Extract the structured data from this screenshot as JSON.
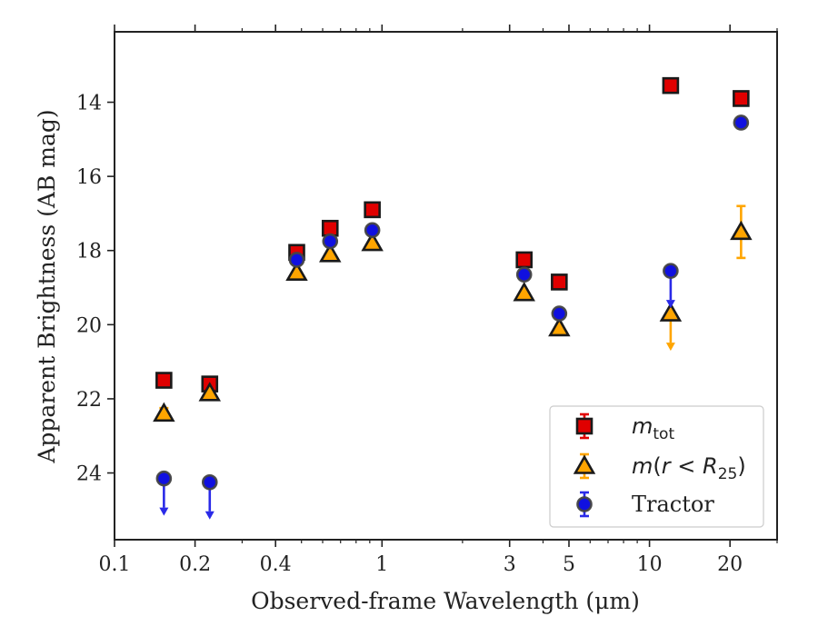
{
  "chart_data": {
    "type": "scatter",
    "xlabel": "Observed-frame Wavelength (μm)",
    "ylabel": "Apparent Brightness (AB mag)",
    "xscale": "log",
    "xlim": [
      0.1,
      30
    ],
    "ylim": [
      25.8,
      12.1
    ],
    "y_inverted": true,
    "x_ticks": [
      0.1,
      0.2,
      0.4,
      1,
      3,
      5,
      10,
      20
    ],
    "x_tick_labels": [
      "0.1",
      "0.2",
      "0.4",
      "1",
      "3",
      "5",
      "10",
      "20"
    ],
    "y_ticks": [
      14,
      16,
      18,
      20,
      22,
      24
    ],
    "y_tick_labels": [
      "14",
      "16",
      "18",
      "20",
      "22",
      "24"
    ],
    "grid": false,
    "legend_position": "lower-right",
    "series": [
      {
        "name": "m_tot",
        "legend_main": "m",
        "legend_sub": "tot",
        "marker": "square",
        "color": "#e00000",
        "points": [
          {
            "x": 0.153,
            "y": 21.5
          },
          {
            "x": 0.227,
            "y": 21.6
          },
          {
            "x": 0.48,
            "y": 18.05
          },
          {
            "x": 0.64,
            "y": 17.4
          },
          {
            "x": 0.92,
            "y": 16.9
          },
          {
            "x": 3.4,
            "y": 18.25
          },
          {
            "x": 4.6,
            "y": 18.85
          },
          {
            "x": 12.0,
            "y": 13.55
          },
          {
            "x": 22.0,
            "y": 13.9
          }
        ]
      },
      {
        "name": "m(r < R25)",
        "legend_text": "m(r < R25)",
        "marker": "triangle",
        "color": "#ffa500",
        "points": [
          {
            "x": 0.153,
            "y": 22.4,
            "err": 0.15
          },
          {
            "x": 0.227,
            "y": 21.85
          },
          {
            "x": 0.48,
            "y": 18.6
          },
          {
            "x": 0.64,
            "y": 18.1
          },
          {
            "x": 0.92,
            "y": 17.8
          },
          {
            "x": 3.4,
            "y": 19.15
          },
          {
            "x": 4.6,
            "y": 20.1
          },
          {
            "x": 12.0,
            "y": 19.7,
            "upper_limit": true
          },
          {
            "x": 22.0,
            "y": 17.5,
            "err": 0.7
          }
        ]
      },
      {
        "name": "Tractor",
        "marker": "circle",
        "color": "#1010e0",
        "points": [
          {
            "x": 0.153,
            "y": 24.15,
            "upper_limit": true
          },
          {
            "x": 0.227,
            "y": 24.25,
            "upper_limit": true
          },
          {
            "x": 0.48,
            "y": 18.25
          },
          {
            "x": 0.64,
            "y": 17.75
          },
          {
            "x": 0.92,
            "y": 17.45
          },
          {
            "x": 3.4,
            "y": 18.65
          },
          {
            "x": 4.6,
            "y": 19.7
          },
          {
            "x": 12.0,
            "y": 18.55,
            "upper_limit": true
          },
          {
            "x": 22.0,
            "y": 14.55
          }
        ]
      }
    ]
  }
}
